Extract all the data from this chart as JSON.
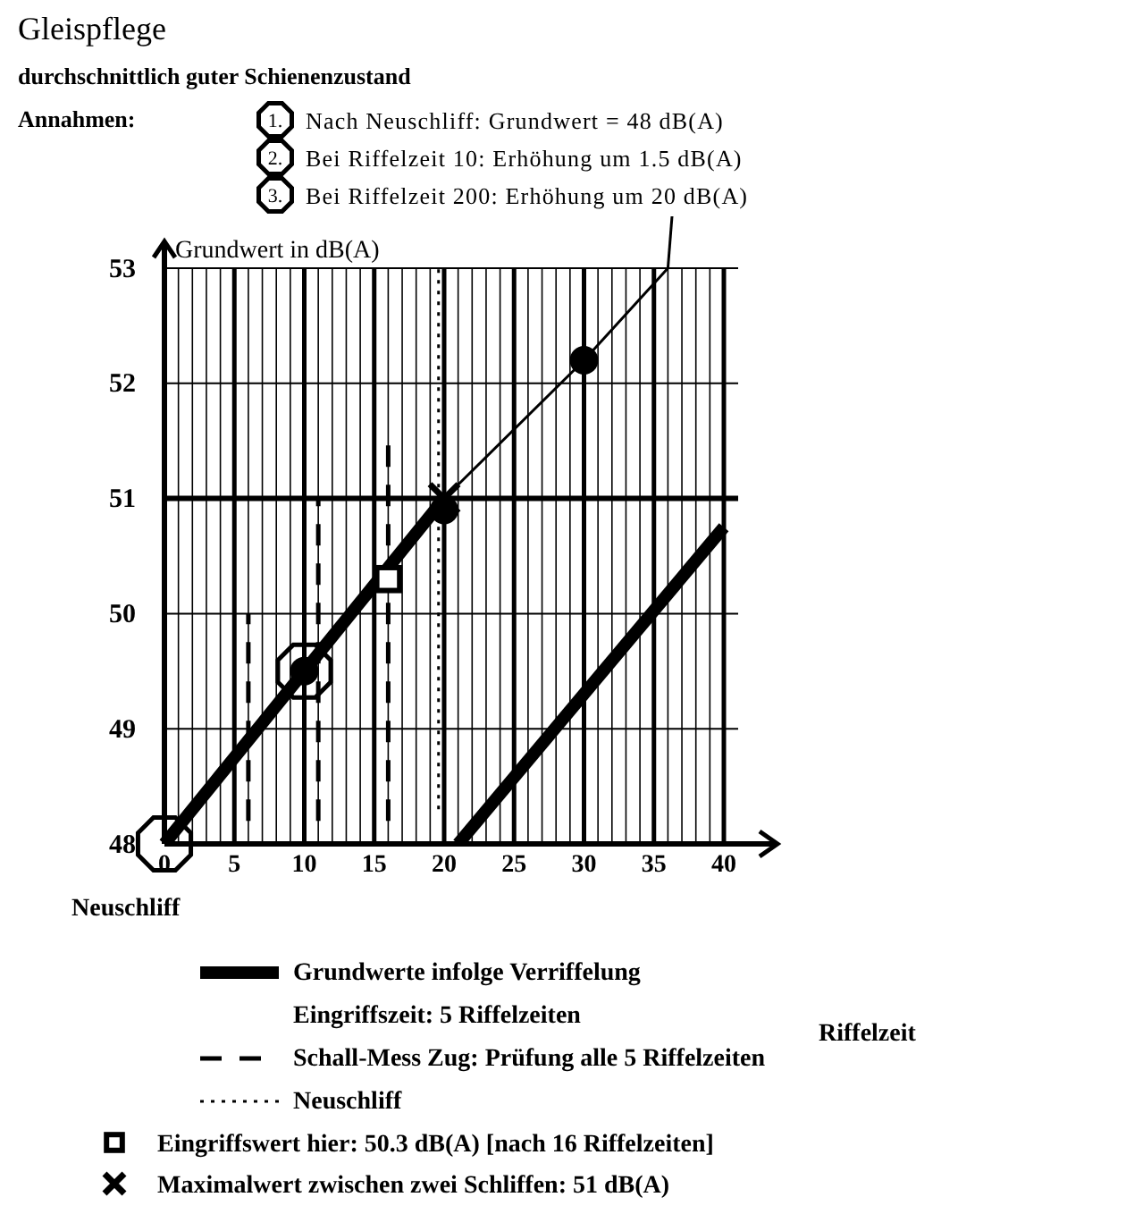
{
  "chart_data": {
    "type": "line",
    "title": "Gleispflege",
    "subtitle": "durchschnittlich guter Schienenzustand",
    "ylabel": "Grundwert in dB(A)",
    "annotations": [
      "Riffelzeit",
      "Annahmen:",
      "1.",
      "Nach Neuschliff: Grundwert = 48 dB(A)",
      "2.",
      "Bei Riffelzeit 10: Erhöhung um 1.5 dB(A)",
      "3.",
      "Bei Riffelzeit 200: Erhöhung um 20 dB(A)",
      "Neuschliff",
      "Eingriffszeit: 5 Riffelzeiten"
    ],
    "xlim": [
      0,
      40
    ],
    "ylim": [
      48,
      53
    ],
    "xticks": [
      0,
      {
        "value": 1,
        "label": null
      },
      {
        "value": 2,
        "label": null
      },
      {
        "value": 3,
        "label": null
      },
      {
        "value": 4,
        "label": null
      },
      5,
      {
        "value": 6,
        "label": null
      },
      {
        "value": 7,
        "label": null
      },
      {
        "value": 8,
        "label": null
      },
      {
        "value": 9,
        "label": null
      },
      10,
      {
        "value": 11,
        "label": null
      },
      {
        "value": 12,
        "label": null
      },
      {
        "value": 13,
        "label": null
      },
      {
        "value": 14,
        "label": null
      },
      15,
      {
        "value": 16,
        "label": null
      },
      {
        "value": 17,
        "label": null
      },
      {
        "value": 18,
        "label": null
      },
      {
        "value": 19,
        "label": null
      },
      20,
      {
        "value": 21,
        "label": null
      },
      {
        "value": 22,
        "label": null
      },
      {
        "value": 23,
        "label": null
      },
      {
        "value": 24,
        "label": null
      },
      25,
      {
        "value": 26,
        "label": null
      },
      {
        "value": 27,
        "label": null
      },
      {
        "value": 28,
        "label": null
      },
      {
        "value": 29,
        "label": null
      },
      30,
      {
        "value": 31,
        "label": null
      },
      {
        "value": 32,
        "label": null
      },
      {
        "value": 33,
        "label": null
      },
      {
        "value": 34,
        "label": null
      },
      35,
      {
        "value": 36,
        "label": null
      },
      {
        "value": 37,
        "label": null
      },
      {
        "value": 38,
        "label": null
      },
      {
        "value": 39,
        "label": null
      },
      40
    ],
    "yticks": [
      48,
      49,
      50,
      51,
      52,
      53
    ],
    "grid": true,
    "legend": "bottom",
    "ref_lines": [
      {
        "axis": "y",
        "value": 51,
        "color": "#000000"
      }
    ],
    "series": [
      {
        "name": "Grundwerte infolge Verriffelung",
        "color": "#000000",
        "line_style": "solid",
        "x": [
          0,
          10,
          20
        ],
        "values": [
          48,
          49.5,
          51
        ]
      },
      {
        "color": "#000000",
        "line_style": "solid",
        "x": [
          21,
          40
        ],
        "values": [
          48,
          50.75
        ]
      },
      {
        "name": "Schall-Mess Zug: Prüfung alle 5 Riffelzeiten",
        "color": "#000000",
        "line_style": "dashed",
        "x": [
          6,
          6
        ],
        "values": [
          48.2,
          50
        ]
      },
      {
        "color": "#000000",
        "line_style": "dashed",
        "x": [
          11,
          11
        ],
        "values": [
          48.2,
          51
        ]
      },
      {
        "color": "#000000",
        "line_style": "dashed",
        "x": [
          16,
          16
        ],
        "values": [
          48.2,
          51.5
        ]
      },
      {
        "name": "Neuschliff",
        "color": "#000000",
        "line_style": "dotted",
        "x": [
          19.6,
          19.6
        ],
        "values": [
          48.3,
          53
        ]
      },
      {
        "color": "#000000",
        "line_style": "solid",
        "x": [
          20,
          30,
          36
        ],
        "values": [
          51,
          52.2,
          53
        ]
      },
      {
        "type": "scatter",
        "color": "#000000",
        "marker": "circle",
        "x": [
          10,
          20,
          30
        ],
        "values": [
          49.5,
          50.9,
          52.2
        ]
      },
      {
        "name": "Eingriffswert hier: 50.3 dB(A) [nach 16 Riffelzeiten]",
        "type": "scatter",
        "color": "#000000",
        "marker": "square",
        "x": [
          16
        ],
        "values": [
          50.3
        ]
      },
      {
        "name": "Maximalwert zwischen zwei Schliffen: 51 dB(A)",
        "type": "scatter",
        "color": "#000000",
        "marker": "cross",
        "x": [
          20
        ],
        "values": [
          51
        ]
      }
    ]
  }
}
